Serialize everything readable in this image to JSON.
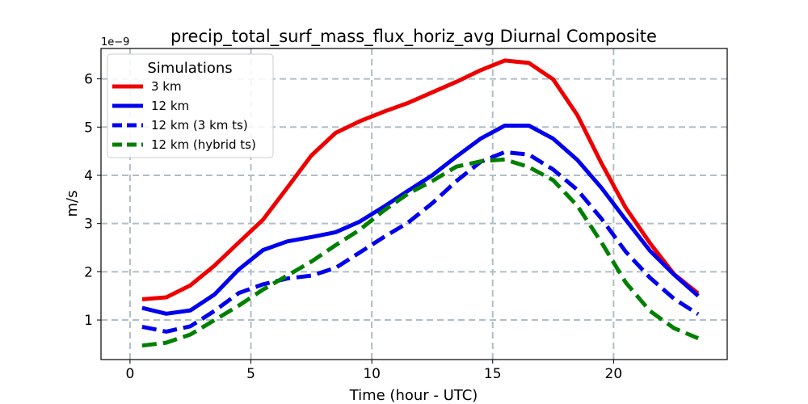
{
  "chart_data": {
    "type": "line",
    "title": "precip_total_surf_mass_flux_horiz_avg Diurnal Composite",
    "xlabel": "Time (hour - UTC)",
    "ylabel": "m/s",
    "y_offset_label": "1e−9",
    "xlim": [
      -1.2,
      24.7
    ],
    "ylim": [
      0.18,
      6.63
    ],
    "x_ticks": [
      0,
      5,
      10,
      15,
      20
    ],
    "x_tick_labels": [
      "0",
      "5",
      "10",
      "15",
      "20"
    ],
    "y_ticks": [
      1,
      2,
      3,
      4,
      5,
      6
    ],
    "y_tick_labels": [
      "1",
      "2",
      "3",
      "4",
      "5",
      "6"
    ],
    "grid": true,
    "legend_title": "Simulations",
    "legend_position": "top-left",
    "x": [
      0.5,
      1.5,
      2.5,
      3.5,
      4.5,
      5.5,
      6.5,
      7.5,
      8.5,
      9.5,
      10.5,
      11.5,
      12.5,
      13.5,
      14.5,
      15.5,
      16.5,
      17.5,
      18.5,
      19.5,
      20.5,
      21.5,
      22.5,
      23.5
    ],
    "series": [
      {
        "name": "3 km",
        "color": "#ee0000",
        "dash": "solid",
        "values": [
          1.43,
          1.47,
          1.72,
          2.13,
          2.61,
          3.08,
          3.74,
          4.41,
          4.88,
          5.12,
          5.32,
          5.5,
          5.72,
          5.94,
          6.18,
          6.38,
          6.33,
          5.99,
          5.25,
          4.25,
          3.33,
          2.6,
          1.95,
          1.55
        ]
      },
      {
        "name": "12 km",
        "color": "#0000ee",
        "dash": "solid",
        "values": [
          1.25,
          1.13,
          1.2,
          1.53,
          2.05,
          2.45,
          2.63,
          2.72,
          2.82,
          3.04,
          3.35,
          3.68,
          4.0,
          4.39,
          4.76,
          5.03,
          5.03,
          4.76,
          4.32,
          3.74,
          3.08,
          2.44,
          1.94,
          1.5
        ]
      },
      {
        "name": "12 km (3 km ts)",
        "color": "#0000ee",
        "dash": "dashed",
        "values": [
          0.86,
          0.76,
          0.87,
          1.19,
          1.56,
          1.74,
          1.86,
          1.92,
          2.08,
          2.4,
          2.72,
          3.02,
          3.42,
          3.88,
          4.28,
          4.48,
          4.43,
          4.12,
          3.7,
          3.1,
          2.42,
          1.88,
          1.44,
          1.12
        ]
      },
      {
        "name": "12 km (hybrid ts)",
        "color": "#008000",
        "dash": "dashed",
        "values": [
          0.47,
          0.53,
          0.7,
          1.0,
          1.3,
          1.63,
          1.92,
          2.21,
          2.55,
          2.87,
          3.27,
          3.62,
          3.88,
          4.18,
          4.29,
          4.33,
          4.17,
          3.9,
          3.37,
          2.61,
          1.78,
          1.19,
          0.83,
          0.62
        ]
      }
    ]
  }
}
